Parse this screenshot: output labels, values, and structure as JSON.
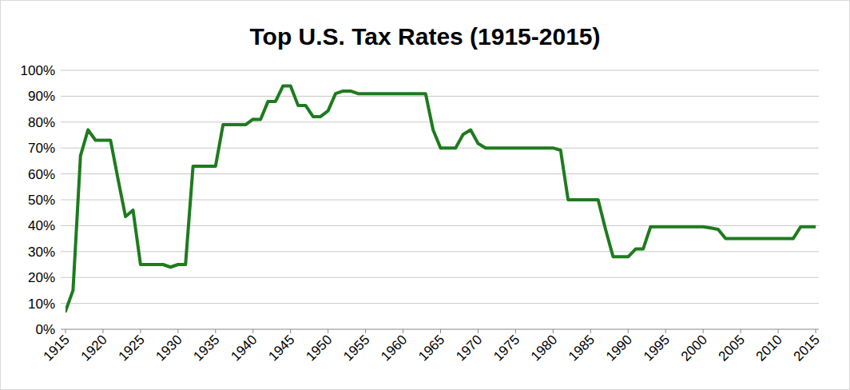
{
  "chart_data": {
    "type": "line",
    "title": "Top U.S. Tax Rates (1915-2015)",
    "color": "#1e7b1e",
    "grid": true,
    "x": [
      1915,
      1916,
      1917,
      1918,
      1919,
      1920,
      1921,
      1922,
      1923,
      1924,
      1925,
      1926,
      1927,
      1928,
      1929,
      1930,
      1931,
      1932,
      1933,
      1934,
      1935,
      1936,
      1937,
      1938,
      1939,
      1940,
      1941,
      1942,
      1943,
      1944,
      1945,
      1946,
      1947,
      1948,
      1949,
      1950,
      1951,
      1952,
      1953,
      1954,
      1955,
      1956,
      1957,
      1958,
      1959,
      1960,
      1961,
      1962,
      1963,
      1964,
      1965,
      1966,
      1967,
      1968,
      1969,
      1970,
      1971,
      1972,
      1973,
      1974,
      1975,
      1976,
      1977,
      1978,
      1979,
      1980,
      1981,
      1982,
      1983,
      1984,
      1985,
      1986,
      1987,
      1988,
      1989,
      1990,
      1991,
      1992,
      1993,
      1994,
      1995,
      1996,
      1997,
      1998,
      1999,
      2000,
      2001,
      2002,
      2003,
      2004,
      2005,
      2006,
      2007,
      2008,
      2009,
      2010,
      2011,
      2012,
      2013,
      2014,
      2015
    ],
    "values": [
      7,
      15,
      67,
      77,
      73,
      73,
      73,
      58,
      43.5,
      46,
      25,
      25,
      25,
      25,
      24,
      25,
      25,
      63,
      63,
      63,
      63,
      79,
      79,
      79,
      79,
      81.1,
      81,
      88,
      88,
      94,
      94,
      86.45,
      86.45,
      82.13,
      82.13,
      84.36,
      91,
      92,
      92,
      91,
      91,
      91,
      91,
      91,
      91,
      91,
      91,
      91,
      91,
      77,
      70,
      70,
      70,
      75.25,
      77,
      71.75,
      70,
      70,
      70,
      70,
      70,
      70,
      70,
      70,
      70,
      70,
      69.13,
      50,
      50,
      50,
      50,
      50,
      38.5,
      28,
      28,
      28,
      31,
      31,
      39.6,
      39.6,
      39.6,
      39.6,
      39.6,
      39.6,
      39.6,
      39.6,
      39.1,
      38.6,
      35,
      35,
      35,
      35,
      35,
      35,
      35,
      35,
      35,
      35,
      39.6,
      39.6,
      39.6
    ],
    "xlim": [
      1915,
      2015
    ],
    "xticks": [
      1915,
      1920,
      1925,
      1930,
      1935,
      1940,
      1945,
      1950,
      1955,
      1960,
      1965,
      1970,
      1975,
      1980,
      1985,
      1990,
      1995,
      2000,
      2005,
      2010,
      2015
    ],
    "ylim": [
      0,
      100
    ],
    "yticks": [
      {
        "value": 0,
        "label": "0%"
      },
      {
        "value": 10,
        "label": "10%"
      },
      {
        "value": 20,
        "label": "20%"
      },
      {
        "value": 30,
        "label": "30%"
      },
      {
        "value": 40,
        "label": "40%"
      },
      {
        "value": 50,
        "label": "50%"
      },
      {
        "value": 60,
        "label": "60%"
      },
      {
        "value": 70,
        "label": "70%"
      },
      {
        "value": 80,
        "label": "80%"
      },
      {
        "value": 90,
        "label": "90%"
      },
      {
        "value": 100,
        "label": "100%"
      }
    ]
  }
}
